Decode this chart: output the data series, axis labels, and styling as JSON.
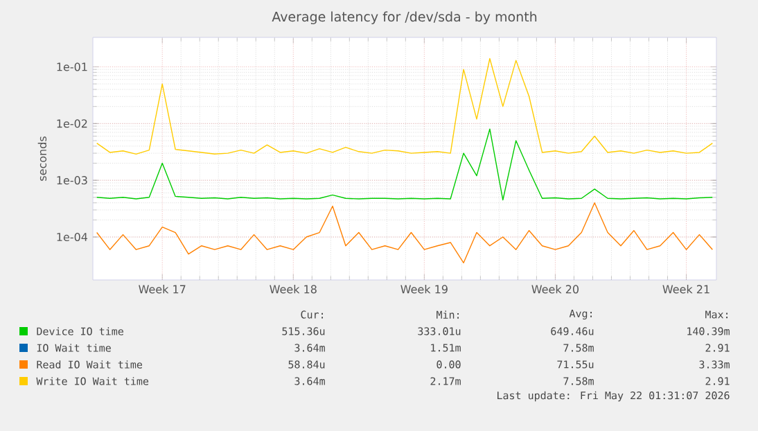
{
  "chart_data": {
    "type": "line",
    "title": "Average latency for /dev/sda - by month",
    "ylabel": "seconds",
    "log": "y",
    "grid": true,
    "legend": "bottom",
    "line_style": "solid",
    "marker": "none",
    "ylim": [
      1.75e-05,
      0.33
    ],
    "yticks": [
      {
        "value": 0.0001,
        "label": "1e-04"
      },
      {
        "value": 0.001,
        "label": "1e-03"
      },
      {
        "value": 0.01,
        "label": "1e-02"
      },
      {
        "value": 0.1,
        "label": "1e-01"
      }
    ],
    "categories": [
      null,
      null,
      null,
      null,
      null,
      "Week 17",
      null,
      null,
      null,
      null,
      null,
      null,
      null,
      null,
      null,
      "Week 18",
      null,
      null,
      null,
      null,
      null,
      null,
      null,
      null,
      null,
      "Week 19",
      null,
      null,
      null,
      null,
      null,
      null,
      null,
      null,
      null,
      "Week 20",
      null,
      null,
      null,
      null,
      null,
      null,
      null,
      null,
      null,
      "Week 21",
      null,
      null
    ],
    "series": [
      {
        "name": "Device IO time",
        "color": "#00cc00",
        "values": [
          0.0005,
          0.00048,
          0.0005,
          0.00047,
          0.0005,
          0.002,
          0.00052,
          0.0005,
          0.00048,
          0.00049,
          0.00047,
          0.0005,
          0.00048,
          0.00049,
          0.00047,
          0.00048,
          0.00047,
          0.00048,
          0.00055,
          0.00048,
          0.00047,
          0.00048,
          0.00048,
          0.00047,
          0.00048,
          0.00047,
          0.00048,
          0.00047,
          0.003,
          0.0012,
          0.008,
          0.00045,
          0.005,
          0.0015,
          0.00048,
          0.00049,
          0.00047,
          0.00048,
          0.0007,
          0.00048,
          0.00047,
          0.00048,
          0.00049,
          0.00047,
          0.00048,
          0.00047,
          0.00049,
          0.0005
        ]
      },
      {
        "name": "IO Wait time",
        "color": "#0066b3",
        "values": [
          null,
          null,
          null,
          null,
          null,
          null,
          null,
          null,
          null,
          null,
          null,
          null,
          null,
          null,
          null,
          null,
          null,
          null,
          null,
          null,
          null,
          null,
          null,
          null,
          null,
          null,
          null,
          null,
          null,
          null,
          null,
          null,
          null,
          null,
          null,
          null,
          null,
          null,
          null,
          null,
          null,
          null,
          null,
          null,
          null,
          null,
          null,
          null
        ]
      },
      {
        "name": "Read IO Wait time",
        "color": "#ff8000",
        "values": [
          0.00012,
          6e-05,
          0.00011,
          6e-05,
          7e-05,
          0.00015,
          0.00012,
          5e-05,
          7e-05,
          6e-05,
          7e-05,
          6e-05,
          0.00011,
          6e-05,
          7e-05,
          6e-05,
          0.0001,
          0.00012,
          0.00035,
          7e-05,
          0.00012,
          6e-05,
          7e-05,
          6e-05,
          0.00012,
          6e-05,
          7e-05,
          8e-05,
          3.5e-05,
          0.00012,
          7e-05,
          0.0001,
          6e-05,
          0.00013,
          7e-05,
          6e-05,
          7e-05,
          0.00012,
          0.0004,
          0.00012,
          7e-05,
          0.00013,
          6e-05,
          7e-05,
          0.00012,
          6e-05,
          0.00011,
          6e-05
        ]
      },
      {
        "name": "Write IO Wait time",
        "color": "#ffcc00",
        "values": [
          0.0045,
          0.0031,
          0.0033,
          0.0029,
          0.0034,
          0.05,
          0.0035,
          0.0033,
          0.0031,
          0.0029,
          0.003,
          0.0034,
          0.003,
          0.0042,
          0.0031,
          0.0033,
          0.003,
          0.0036,
          0.0031,
          0.0038,
          0.0032,
          0.003,
          0.0034,
          0.0033,
          0.003,
          0.0031,
          0.0032,
          0.003,
          0.09,
          0.012,
          0.14,
          0.02,
          0.13,
          0.03,
          0.0031,
          0.0033,
          0.003,
          0.0032,
          0.006,
          0.0031,
          0.0033,
          0.003,
          0.0034,
          0.0031,
          0.0033,
          0.003,
          0.0031,
          0.0045
        ]
      }
    ],
    "annotations": [
      "Cur:",
      "Min:",
      "Avg:",
      "Max:",
      "515.36u",
      "333.01u",
      "649.46u",
      "140.39m",
      "3.64m",
      "1.51m",
      "7.58m",
      "2.91",
      "58.84u",
      "0.00",
      "71.55u",
      "3.33m",
      "3.64m",
      "2.17m",
      "7.58m",
      "2.91",
      "Last update: Fri May 22 01:31:07 2026"
    ]
  }
}
